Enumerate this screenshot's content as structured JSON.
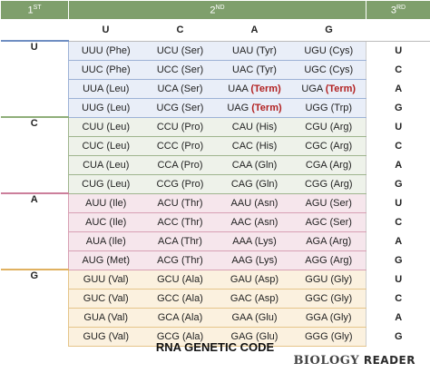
{
  "header": {
    "first": {
      "num": "1",
      "sup": "ST"
    },
    "second": {
      "num": "2",
      "sup": "ND"
    },
    "third": {
      "num": "3",
      "sup": "RD"
    },
    "columns": [
      "U",
      "C",
      "A",
      "G"
    ]
  },
  "groups": [
    {
      "letter": "U",
      "rows": [
        {
          "cells": [
            [
              "UUU (Phe)",
              ""
            ],
            [
              "UCU (Ser)",
              ""
            ],
            [
              "UAU (Tyr)",
              ""
            ],
            [
              "UGU (Cys)",
              ""
            ]
          ],
          "third": "U"
        },
        {
          "cells": [
            [
              "UUC (Phe)",
              ""
            ],
            [
              "UCC (Ser)",
              ""
            ],
            [
              "UAC (Tyr)",
              ""
            ],
            [
              "UGC (Cys)",
              ""
            ]
          ],
          "third": "C"
        },
        {
          "cells": [
            [
              "UUA (Leu)",
              ""
            ],
            [
              "UCA (Ser)",
              ""
            ],
            [
              "UAA ",
              "(Term)"
            ],
            [
              "UGA ",
              "(Term)"
            ]
          ],
          "third": "A"
        },
        {
          "cells": [
            [
              "UUG (Leu)",
              ""
            ],
            [
              "UCG (Ser)",
              ""
            ],
            [
              "UAG ",
              "(Term)"
            ],
            [
              "UGG (Trp)",
              ""
            ]
          ],
          "third": "G"
        }
      ]
    },
    {
      "letter": "C",
      "rows": [
        {
          "cells": [
            [
              "CUU (Leu)",
              ""
            ],
            [
              "CCU (Pro)",
              ""
            ],
            [
              "CAU (His)",
              ""
            ],
            [
              "CGU (Arg)",
              ""
            ]
          ],
          "third": "U"
        },
        {
          "cells": [
            [
              "CUC (Leu)",
              ""
            ],
            [
              "CCC (Pro)",
              ""
            ],
            [
              "CAC (His)",
              ""
            ],
            [
              "CGC (Arg)",
              ""
            ]
          ],
          "third": "C"
        },
        {
          "cells": [
            [
              "CUA (Leu)",
              ""
            ],
            [
              "CCA (Pro)",
              ""
            ],
            [
              "CAA (Gln)",
              ""
            ],
            [
              "CGA (Arg)",
              ""
            ]
          ],
          "third": "A"
        },
        {
          "cells": [
            [
              "CUG (Leu)",
              ""
            ],
            [
              "CCG (Pro)",
              ""
            ],
            [
              "CAG (Gln)",
              ""
            ],
            [
              "CGG (Arg)",
              ""
            ]
          ],
          "third": "G"
        }
      ]
    },
    {
      "letter": "A",
      "rows": [
        {
          "cells": [
            [
              "AUU (Ile)",
              ""
            ],
            [
              "ACU (Thr)",
              ""
            ],
            [
              "AAU (Asn)",
              ""
            ],
            [
              "AGU (Ser)",
              ""
            ]
          ],
          "third": "U"
        },
        {
          "cells": [
            [
              "AUC (Ile)",
              ""
            ],
            [
              "ACC (Thr)",
              ""
            ],
            [
              "AAC (Asn)",
              ""
            ],
            [
              "AGC (Ser)",
              ""
            ]
          ],
          "third": "C"
        },
        {
          "cells": [
            [
              "AUA (Ile)",
              ""
            ],
            [
              "ACA (Thr)",
              ""
            ],
            [
              "AAA (Lys)",
              ""
            ],
            [
              "AGA (Arg)",
              ""
            ]
          ],
          "third": "A"
        },
        {
          "cells": [
            [
              "AUG (Met)",
              ""
            ],
            [
              "ACG (Thr)",
              ""
            ],
            [
              "AAG (Lys)",
              ""
            ],
            [
              "AGG (Arg)",
              ""
            ]
          ],
          "third": "G"
        }
      ]
    },
    {
      "letter": "G",
      "rows": [
        {
          "cells": [
            [
              "GUU (Val)",
              ""
            ],
            [
              "GCU (Ala)",
              ""
            ],
            [
              "GAU (Asp)",
              ""
            ],
            [
              "GGU (Gly)",
              ""
            ]
          ],
          "third": "U"
        },
        {
          "cells": [
            [
              "GUC (Val)",
              ""
            ],
            [
              "GCC (Ala)",
              ""
            ],
            [
              "GAC (Asp)",
              ""
            ],
            [
              "GGC (Gly)",
              ""
            ]
          ],
          "third": "C"
        },
        {
          "cells": [
            [
              "GUA (Val)",
              ""
            ],
            [
              "GCA (Ala)",
              ""
            ],
            [
              "GAA (Glu)",
              ""
            ],
            [
              "GGA (Gly)",
              ""
            ]
          ],
          "third": "A"
        },
        {
          "cells": [
            [
              "GUG (Val)",
              ""
            ],
            [
              "GCG (Ala)",
              ""
            ],
            [
              "GAG (Glu)",
              ""
            ],
            [
              "GGG (Gly)",
              ""
            ]
          ],
          "third": "G"
        }
      ]
    }
  ],
  "caption": "RNA GENETIC CODE",
  "brand": {
    "part1": "BIOLOGY",
    "part2": " READER"
  },
  "colors": {
    "header": "#7f9f6c",
    "term": "#b22222"
  }
}
